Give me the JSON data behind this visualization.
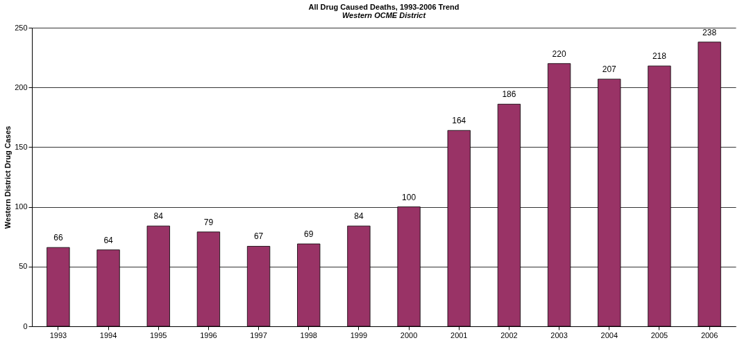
{
  "chart_data": {
    "type": "bar",
    "title": "All Drug Caused Deaths, 1993-2006 Trend",
    "subtitle": "Western OCME District",
    "ylabel": "Western District Drug Cases",
    "categories": [
      "1993",
      "1994",
      "1995",
      "1996",
      "1997",
      "1998",
      "1999",
      "2000",
      "2001",
      "2002",
      "2003",
      "2004",
      "2005",
      "2006"
    ],
    "values": [
      66,
      64,
      84,
      79,
      67,
      69,
      84,
      100,
      164,
      186,
      220,
      207,
      218,
      238
    ],
    "color": "#993366",
    "ylim": [
      0,
      250
    ],
    "yticks": [
      0,
      50,
      100,
      150,
      200,
      250
    ],
    "grid": "y",
    "data_labels": true
  }
}
